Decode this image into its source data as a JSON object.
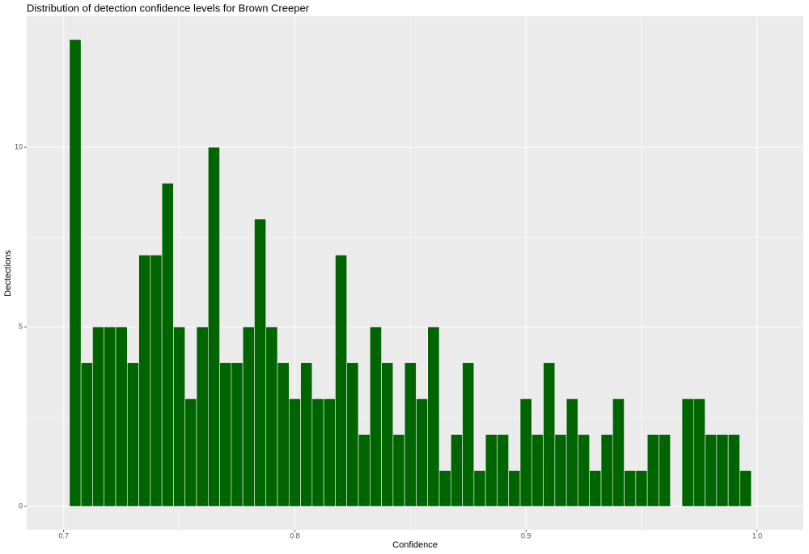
{
  "chart_data": {
    "type": "histogram",
    "title": "Distribution of detection confidence levels for Brown Creeper",
    "x_label": "Confidence",
    "y_label": "Dectections",
    "bins": [
      0.7025,
      0.7075,
      0.7125,
      0.7175,
      0.7225,
      0.7275,
      0.7325,
      0.7375,
      0.7425,
      0.7475,
      0.7525,
      0.7575,
      0.7625,
      0.7675,
      0.7725,
      0.7775,
      0.7825,
      0.7875,
      0.7925,
      0.7975,
      0.8025,
      0.8075,
      0.8125,
      0.8175,
      0.8225,
      0.8275,
      0.8325,
      0.8375,
      0.8425,
      0.8475,
      0.8525,
      0.8575,
      0.8625,
      0.8675,
      0.8725,
      0.8775,
      0.8825,
      0.8875,
      0.8925,
      0.8975,
      0.9025,
      0.9075,
      0.9125,
      0.9175,
      0.9225,
      0.9275,
      0.9325,
      0.9375,
      0.9425,
      0.9475,
      0.9525,
      0.9575,
      0.9625,
      0.9675,
      0.9725,
      0.9775,
      0.9825,
      0.9875,
      0.9925,
      0.9975
    ],
    "values": [
      13,
      4,
      5,
      5,
      5,
      4,
      7,
      7,
      9,
      5,
      3,
      5,
      10,
      4,
      4,
      5,
      8,
      5,
      4,
      3,
      4,
      3,
      3,
      7,
      4,
      2,
      5,
      4,
      2,
      4,
      3,
      5,
      1,
      2,
      4,
      1,
      2,
      2,
      1,
      3,
      2,
      4,
      2,
      3,
      2,
      1,
      2,
      3,
      1,
      1,
      2,
      2,
      0,
      3,
      3,
      2,
      2,
      2,
      1
    ],
    "color": "#006400",
    "xlim": [
      0.684,
      1.02
    ],
    "xticks": [
      0.7,
      0.8,
      0.9,
      {
        "value": 1,
        "label": "1.0"
      }
    ],
    "ylim": [
      -0.65,
      13.65
    ],
    "yticks": [
      0,
      5,
      10
    ],
    "grid": true
  }
}
